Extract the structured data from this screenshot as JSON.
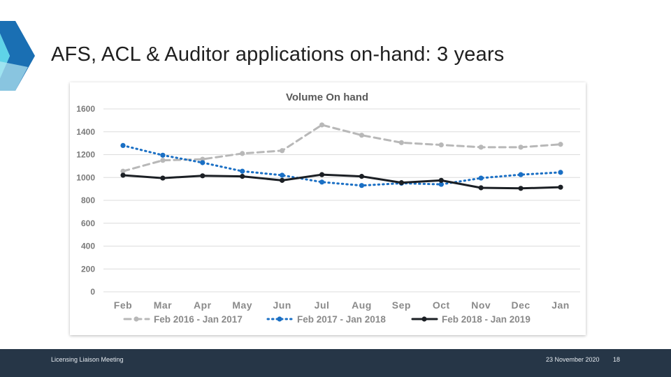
{
  "slide": {
    "title": "AFS, ACL & Auditor applications on-hand: 3 years"
  },
  "footer": {
    "left_text": "Licensing Liaison Meeting",
    "date": "23 November 2020",
    "page_number": "18"
  },
  "colors": {
    "accent_dark": "#1a6fb3",
    "accent_light": "#5fd3e8",
    "footer_bg": "#263647",
    "series_2016": "#b8b8b8",
    "series_2017": "#1a6fc4",
    "series_2018": "#1b1f24"
  },
  "chart_data": {
    "type": "line",
    "title": "Volume On hand",
    "categories": [
      "Feb",
      "Mar",
      "Apr",
      "May",
      "Jun",
      "Jul",
      "Aug",
      "Sep",
      "Oct",
      "Nov",
      "Dec",
      "Jan"
    ],
    "ylim": [
      0,
      1600
    ],
    "yticks": [
      0,
      200,
      400,
      600,
      800,
      1000,
      1200,
      1400,
      1600
    ],
    "grid": true,
    "legend_position": "bottom",
    "xlabel": "",
    "ylabel": "",
    "series": [
      {
        "name": "Feb 2016 - Jan 2017",
        "style": "dashed",
        "color": "#b8b8b8",
        "values": [
          1055,
          1150,
          1160,
          1210,
          1235,
          1460,
          1370,
          1305,
          1285,
          1265,
          1265,
          1290
        ]
      },
      {
        "name": "Feb 2017 - Jan 2018",
        "style": "dotted",
        "color": "#1a6fc4",
        "values": [
          1280,
          1195,
          1130,
          1055,
          1020,
          960,
          930,
          950,
          940,
          995,
          1025,
          1045
        ]
      },
      {
        "name": "Feb 2018 - Jan 2019",
        "style": "solid",
        "color": "#1b1f24",
        "values": [
          1020,
          995,
          1015,
          1010,
          975,
          1025,
          1010,
          955,
          975,
          910,
          905,
          915
        ]
      }
    ]
  }
}
